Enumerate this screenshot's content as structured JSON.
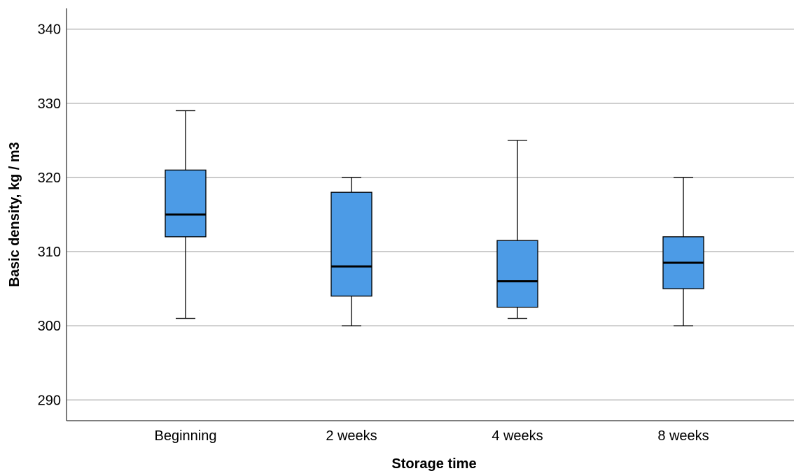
{
  "chart_data": {
    "type": "box",
    "xlabel": "Storage time",
    "ylabel": "Basic density, kg / m3",
    "ylim": [
      287.2,
      342.8
    ],
    "yticks": [
      290,
      300,
      310,
      320,
      330,
      340
    ],
    "grid": true,
    "categories": [
      "Beginning",
      "2 weeks",
      "4 weeks",
      "8 weeks"
    ],
    "boxes": [
      {
        "category": "Beginning",
        "min": 301,
        "q1": 312,
        "median": 315,
        "q3": 321,
        "max": 329
      },
      {
        "category": "2 weeks",
        "min": 300,
        "q1": 304,
        "median": 308,
        "q3": 318,
        "max": 320
      },
      {
        "category": "4 weeks",
        "min": 301,
        "q1": 302.5,
        "median": 306,
        "q3": 311.5,
        "max": 325
      },
      {
        "category": "8 weeks",
        "min": 300,
        "q1": 305,
        "median": 308.5,
        "q3": 312,
        "max": 320
      }
    ],
    "colors": {
      "box_fill": "#4C9BE6",
      "box_stroke": "#000000",
      "grid": "#B4B4B4"
    }
  }
}
